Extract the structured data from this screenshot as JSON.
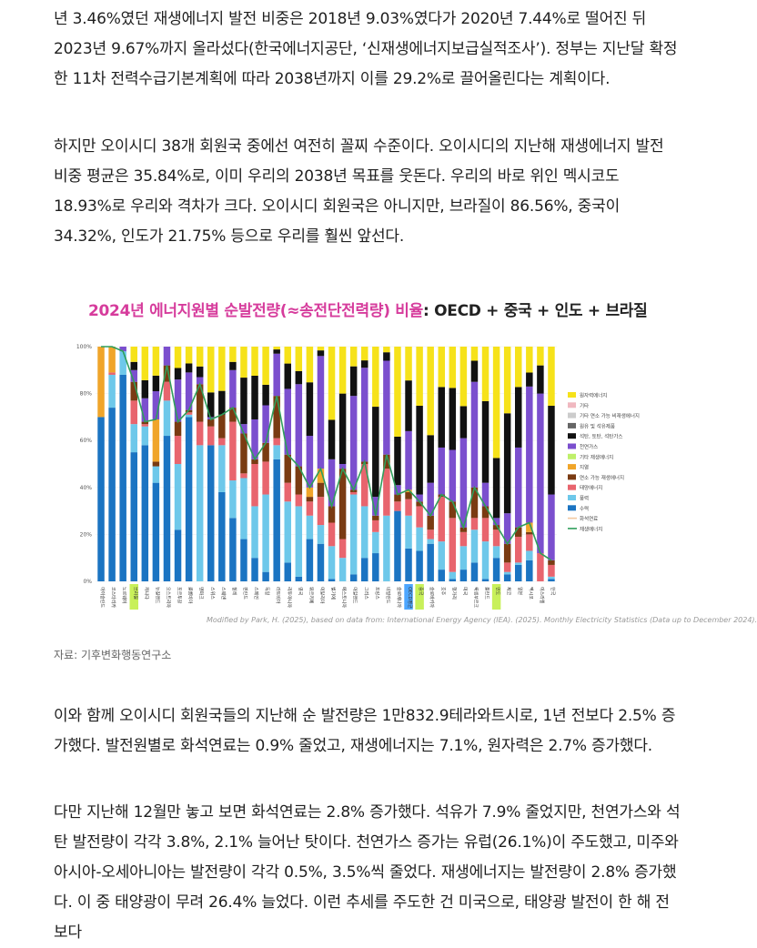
{
  "article": {
    "p1": "년 3.46%였던 재생에너지 발전 비중은 2018년 9.03%였다가 2020년 7.44%로 떨어진 뒤 2023년 9.67%까지 올라섰다(한국에너지공단, ‘신재생에너지보급실적조사’). 정부는 지난달 확정한 11차 전력수급기본계획에 따라 2038년까지 이를 29.2%로 끌어올린다는 계획이다.",
    "p2": "하지만 오이시디 38개 회원국 중에선 여전히 꼴찌 수준이다. 오이시디의 지난해 재생에너지 발전 비중 평균은 35.84%로, 이미 우리의 2038년 목표를 웃돈다. 우리의 바로 위인 멕시코도 18.93%로 우리와 격차가 크다. 오이시디 회원국은 아니지만, 브라질이 86.56%, 중국이 34.32%, 인도가 21.75% 등으로 우리를 훨씬 앞선다.",
    "p3": "이와 함께 오이시디 회원국들의 지난해 순 발전량은 1만832.9테라와트시로, 1년 전보다 2.5% 증가했다. 발전원별로 화석연료는 0.9% 줄었고, 재생에너지는 7.1%, 원자력은 2.7% 증가했다.",
    "p4": "다만 지난해 12월만 놓고 보면 화석연료는 2.8% 증가했다. 석유가 7.9% 줄었지만, 천연가스와 석탄 발전량이 각각 3.8%, 2.1% 늘어난 탓이다. 천연가스 증가는 유럽(26.1%)이 주도했고, 미주와 아시아-오세아니아는 발전량이 각각 0.5%, 3.5%씩 줄었다. 재생에너지는 발전량이 2.8% 증가했다. 이 중 태양광이 무려 26.4% 늘었다. 이런 추세를 주도한 건 미국으로, 태양광 발전이 한 해 전보다"
  },
  "figure": {
    "title_part1": "2024년 에너지원별 순발전량(≈송전단전력량) 비율",
    "title_part2": ": OECD + 중국 + 인도 + 브라질",
    "credit": "Modified by Park, H. (2025), based on data from: International Energy Agency (IEA). (2025). Monthly Electricity Statistics (Data up to December 2024).",
    "caption": "자료: 기후변화행동연구소"
  },
  "chart_data": {
    "type": "bar",
    "stacked": true,
    "y_tick_labels": [
      "0%",
      "20%",
      "40%",
      "60%",
      "80%",
      "100%"
    ],
    "ylim": [
      0,
      100
    ],
    "legend_position": "right",
    "legend": [
      {
        "name": "원자력에너지",
        "color": "#f6e21a"
      },
      {
        "name": "기타",
        "color": "#f0b8c0"
      },
      {
        "name": "기타 연소 가능 비재생에너지",
        "color": "#cccccc"
      },
      {
        "name": "원유 및 석유제품",
        "color": "#666666"
      },
      {
        "name": "석탄, 토탄, 석탄가스",
        "color": "#111111"
      },
      {
        "name": "천연가스",
        "color": "#7b4fce"
      },
      {
        "name": "기타 재생에너지",
        "color": "#bff06a"
      },
      {
        "name": "지열",
        "color": "#f0a52a"
      },
      {
        "name": "연소 가능 재생에너지",
        "color": "#7a3b12"
      },
      {
        "name": "태양에너지",
        "color": "#e8656e"
      },
      {
        "name": "풍력",
        "color": "#6ec8ea"
      },
      {
        "name": "수력",
        "color": "#1b74c2"
      },
      {
        "name": "화석연료",
        "color": "#f3c9a0"
      },
      {
        "name": "재생에너지",
        "color": "#2f9e5b"
      }
    ],
    "categories": [
      "아이슬란드",
      "코스타리카",
      "노르웨이",
      "브라질",
      "캐나다",
      "뉴질랜드",
      "오스트리아",
      "포르투갈",
      "콜롬비아",
      "덴마크",
      "스위스",
      "스웨덴",
      "칠레",
      "핀란드",
      "스페인",
      "독일",
      "라트비아",
      "리투아니아",
      "영국",
      "튀르키예",
      "이탈리아",
      "벨기에",
      "에스토니아",
      "아일랜드",
      "그리스",
      "프랑스",
      "네덜란드",
      "슬로베니아",
      "OECD평균",
      "중국",
      "슬로바키아",
      "호주",
      "헝가리",
      "미국",
      "룩셈부르크",
      "폴란드",
      "인도",
      "체코",
      "일본",
      "멕시코",
      "이스라엘",
      "한국"
    ],
    "highlighted_categories": [
      "브라질",
      "OECD평균",
      "중국",
      "인도"
    ],
    "series": [
      {
        "name": "수력",
        "values": [
          70,
          74,
          88,
          55,
          58,
          42,
          62,
          22,
          70,
          0,
          58,
          38,
          27,
          18,
          10,
          4,
          52,
          8,
          2,
          18,
          16,
          1,
          0,
          3,
          10,
          12,
          0,
          30,
          14,
          13,
          16,
          5,
          1,
          5,
          8,
          1,
          10,
          3,
          7,
          9,
          0,
          1
        ]
      },
      {
        "name": "풍력",
        "values": [
          0,
          14,
          10,
          12,
          8,
          7,
          15,
          28,
          1,
          58,
          0,
          20,
          16,
          26,
          22,
          33,
          6,
          26,
          30,
          10,
          8,
          14,
          10,
          34,
          22,
          9,
          28,
          0,
          14,
          10,
          2,
          12,
          3,
          10,
          14,
          16,
          5,
          1,
          1,
          4,
          0,
          1
        ]
      },
      {
        "name": "태양에너지",
        "values": [
          0,
          1,
          0,
          10,
          1,
          0,
          8,
          12,
          1,
          10,
          8,
          3,
          25,
          2,
          18,
          14,
          3,
          8,
          5,
          6,
          12,
          10,
          8,
          1,
          18,
          5,
          20,
          4,
          7,
          9,
          4,
          19,
          23,
          6,
          5,
          10,
          7,
          4,
          11,
          7,
          12,
          5
        ]
      },
      {
        "name": "연소 가능 재생에너지",
        "values": [
          0,
          0,
          0,
          8,
          1,
          2,
          7,
          6,
          1,
          16,
          3,
          10,
          6,
          17,
          2,
          8,
          18,
          12,
          12,
          2,
          6,
          7,
          30,
          1,
          1,
          2,
          6,
          3,
          3,
          2,
          6,
          1,
          7,
          2,
          13,
          5,
          2,
          8,
          4,
          1,
          0,
          2
        ]
      },
      {
        "name": "지열",
        "values": [
          30,
          11,
          0,
          0,
          0,
          18,
          0,
          0,
          0,
          0,
          0,
          0,
          0,
          0,
          0,
          0,
          0,
          0,
          0,
          4,
          6,
          0,
          0,
          0,
          0,
          0,
          0,
          0,
          1,
          0,
          0,
          0,
          0,
          0,
          0,
          0,
          0,
          0,
          0,
          4,
          0,
          0
        ]
      },
      {
        "name": "천연가스",
        "values": [
          0,
          0,
          2,
          5,
          10,
          12,
          8,
          18,
          16,
          3,
          1,
          0,
          16,
          4,
          17,
          16,
          18,
          28,
          35,
          22,
          48,
          20,
          2,
          40,
          40,
          8,
          40,
          4,
          25,
          3,
          14,
          20,
          22,
          38,
          45,
          10,
          3,
          13,
          34,
          58,
          68,
          28
        ]
      }
    ]
  }
}
